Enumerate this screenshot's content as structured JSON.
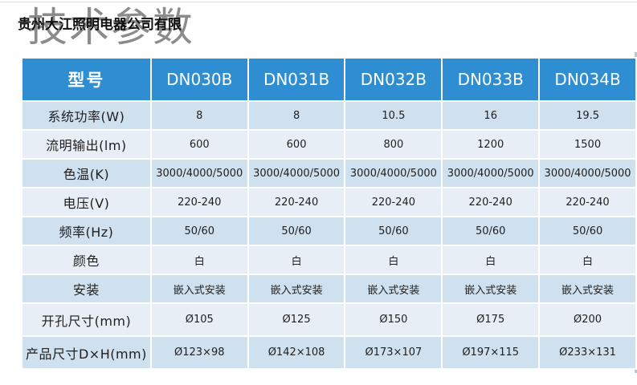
{
  "header": {
    "background_title": "技术参数",
    "overlay_title": "贵州大江照明电器公司有限"
  },
  "colors": {
    "header_blue": "#2f8ed2",
    "row_dark": "#cfe0ef",
    "row_light": "#e7eef5"
  },
  "table": {
    "header_label": "型号",
    "models": [
      "DN030B",
      "DN031B",
      "DN032B",
      "DN033B",
      "DN034B"
    ],
    "rows": [
      {
        "label": "系统功率(W)",
        "values": [
          "8",
          "8",
          "10.5",
          "16",
          "19.5"
        ]
      },
      {
        "label": "流明输出(lm)",
        "values": [
          "600",
          "600",
          "800",
          "1200",
          "1500"
        ]
      },
      {
        "label": "色温(K)",
        "values": [
          "3000/4000/5000",
          "3000/4000/5000",
          "3000/4000/5000",
          "3000/4000/5000",
          "3000/4000/5000"
        ]
      },
      {
        "label": "电压(V)",
        "values": [
          "220-240",
          "220-240",
          "220-240",
          "220-240",
          "220-240"
        ]
      },
      {
        "label": "频率(Hz)",
        "values": [
          "50/60",
          "50/60",
          "50/60",
          "50/60",
          "50/60"
        ]
      },
      {
        "label": "颜色",
        "values": [
          "白",
          "白",
          "白",
          "白",
          "白"
        ]
      },
      {
        "label": "安装",
        "values": [
          "嵌入式安装",
          "嵌入式安装",
          "嵌入式安装",
          "嵌入式安装",
          "嵌入式安装"
        ]
      },
      {
        "label": "开孔尺寸(mm)",
        "values": [
          "Ø105",
          "Ø125",
          "Ø150",
          "Ø175",
          "Ø200"
        ]
      },
      {
        "label": "产品尺寸D×H(mm)",
        "values": [
          "Ø123×98",
          "Ø142×108",
          "Ø173×107",
          "Ø197×115",
          "Ø233×131"
        ]
      }
    ]
  }
}
